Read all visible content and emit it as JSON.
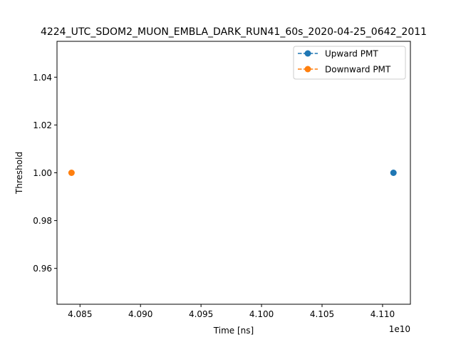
{
  "chart_data": {
    "type": "scatter",
    "title": "4224_UTC_SDOM2_MUON_EMBLA_DARK_RUN41_60s_2020-04-25_0642_2011",
    "xlabel": "Time [ns]",
    "ylabel": "Threshold",
    "x_offset_label": "1e10",
    "x_ticks": [
      4.085,
      4.09,
      4.095,
      4.1,
      4.105,
      4.11
    ],
    "x_tick_labels": [
      "4.085",
      "4.090",
      "4.095",
      "4.100",
      "4.105",
      "4.110"
    ],
    "y_ticks": [
      0.96,
      0.98,
      1.0,
      1.02,
      1.04
    ],
    "y_tick_labels": [
      "0.96",
      "0.98",
      "1.00",
      "1.02",
      "1.04"
    ],
    "xlim": [
      4.0831,
      4.1123
    ],
    "ylim": [
      0.945,
      1.055
    ],
    "grid": false,
    "legend_position": "top-right",
    "series": [
      {
        "name": "Upward PMT",
        "color": "#1f77b4",
        "linestyle": "dashed",
        "marker": "circle",
        "points": [
          [
            4.1109,
            1.0
          ]
        ]
      },
      {
        "name": "Downward PMT",
        "color": "#ff7f0e",
        "linestyle": "dashed",
        "marker": "circle",
        "points": [
          [
            4.0843,
            1.0
          ]
        ]
      }
    ]
  }
}
